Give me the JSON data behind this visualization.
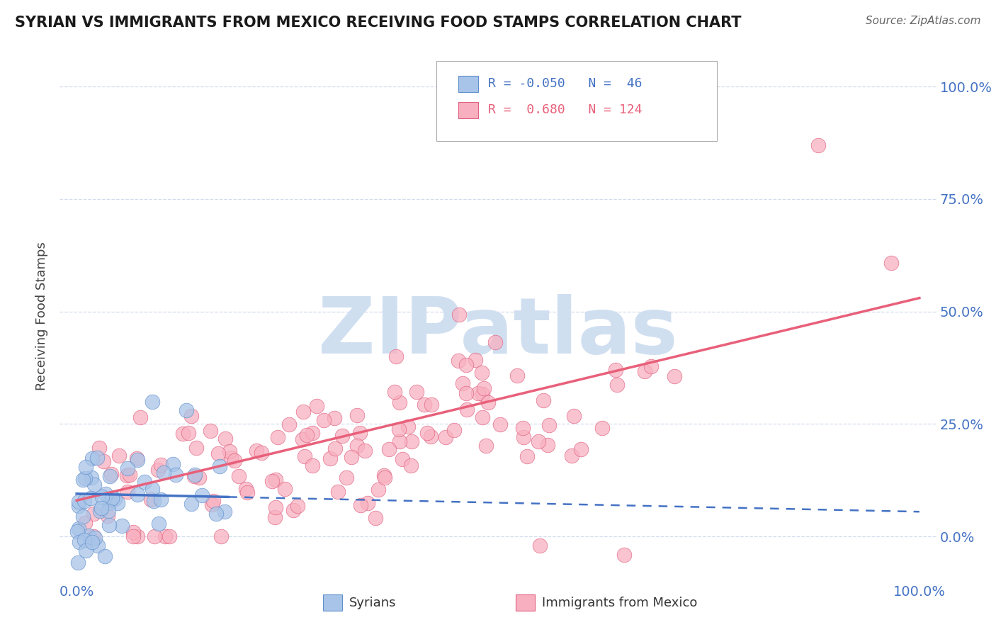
{
  "title": "SYRIAN VS IMMIGRANTS FROM MEXICO RECEIVING FOOD STAMPS CORRELATION CHART",
  "source": "Source: ZipAtlas.com",
  "ylabel": "Receiving Food Stamps",
  "xlim": [
    -0.02,
    1.02
  ],
  "ylim": [
    -0.1,
    1.08
  ],
  "y_tick_positions": [
    0.0,
    0.25,
    0.5,
    0.75,
    1.0
  ],
  "y_tick_labels": [
    "0.0%",
    "25.0%",
    "50.0%",
    "75.0%",
    "100.0%"
  ],
  "x_tick_positions": [
    0.0,
    1.0
  ],
  "x_tick_labels": [
    "0.0%",
    "100.0%"
  ],
  "syrian_R": -0.05,
  "syrian_N": 46,
  "mexico_R": 0.68,
  "mexico_N": 124,
  "syrian_dot_color": "#a8c4e8",
  "syrian_edge_color": "#6090cc",
  "mexico_dot_color": "#f8b0c0",
  "mexico_edge_color": "#e06080",
  "syrian_line_color": "#4472c4",
  "mexico_line_color": "#e8607a",
  "watermark": "ZIPatlas",
  "watermark_color": "#d0dff0",
  "background_color": "#ffffff",
  "grid_color": "#c8d4e8",
  "title_color": "#1a1a1a",
  "axis_label_color": "#444444",
  "tick_label_color": "#4472c4",
  "source_color": "#666666",
  "legend_syr_R_color": "#4472c4",
  "legend_mex_R_color": "#e8607a",
  "legend_N_color": "#4472c4"
}
